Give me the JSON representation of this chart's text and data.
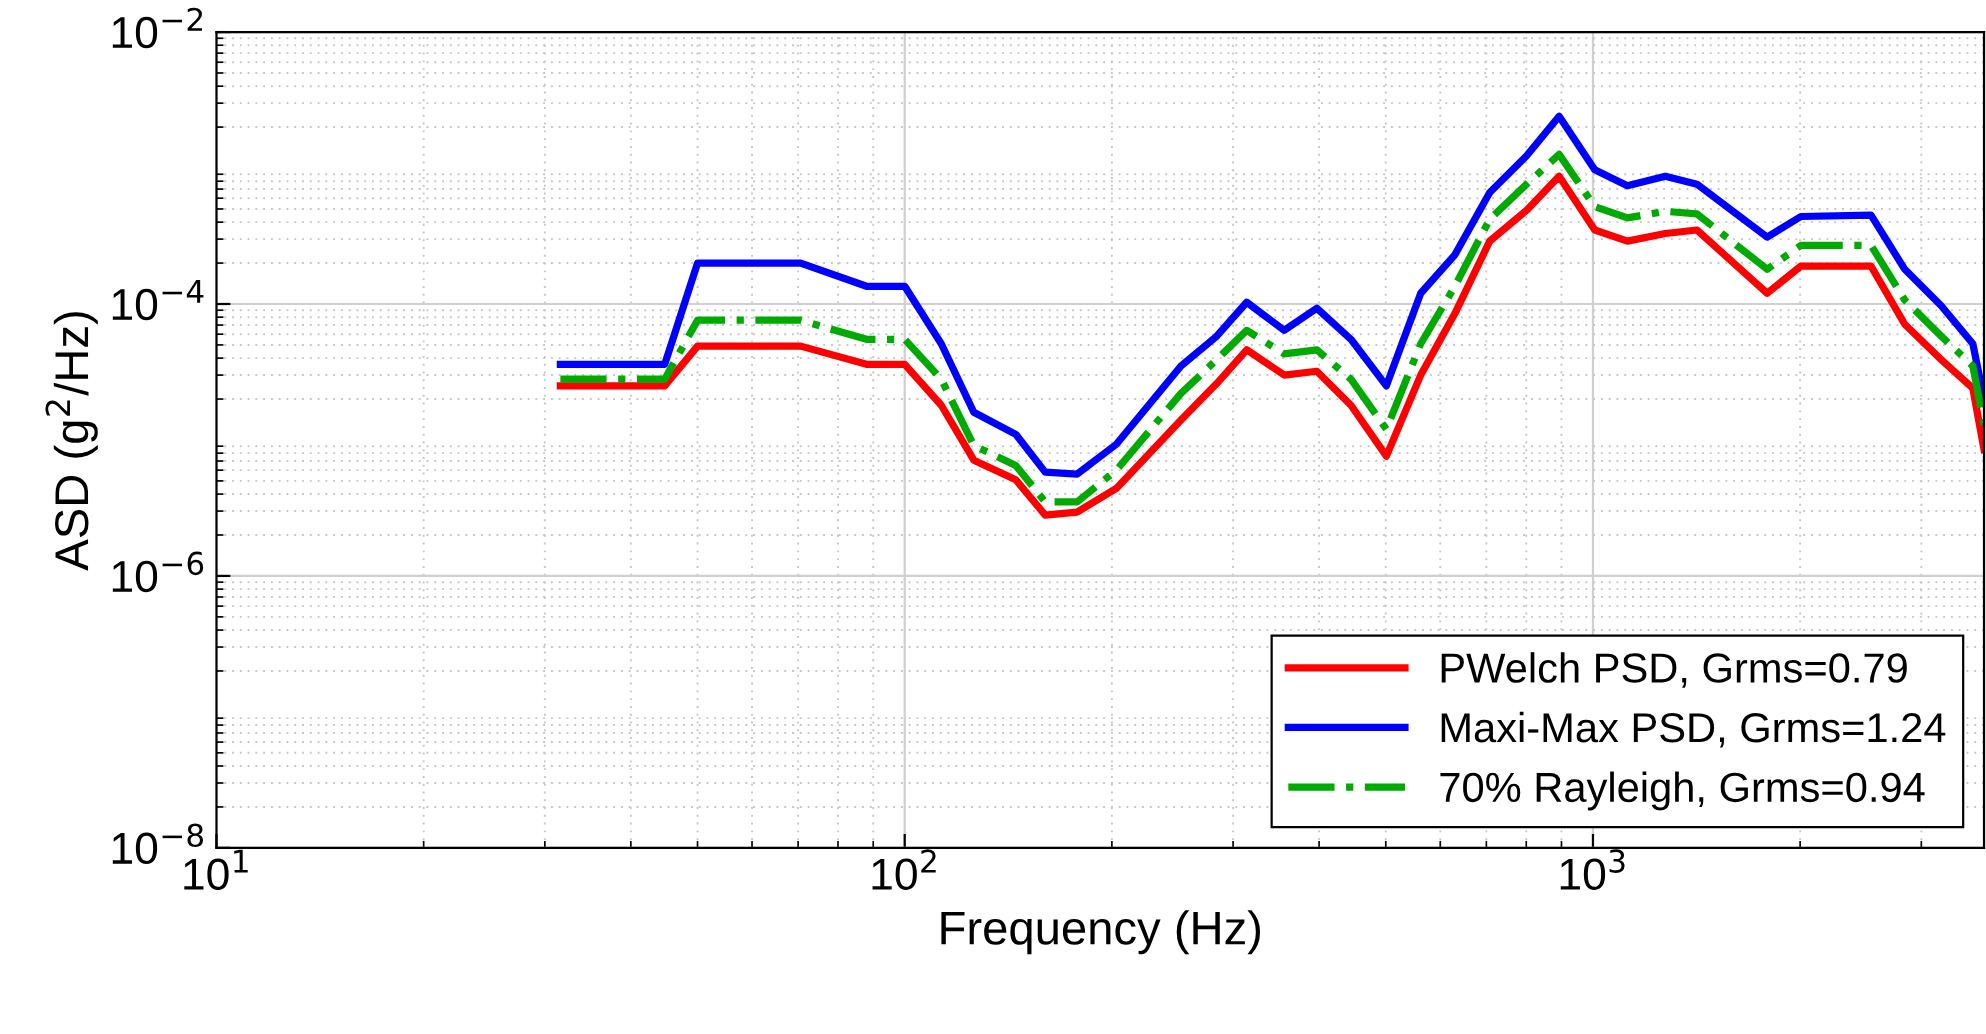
{
  "chart_data": {
    "type": "line",
    "xlabel": "Frequency (Hz)",
    "ylabel": "ASD (g$^{2}$/Hz)",
    "log": "xy",
    "grid": true,
    "legend": "bottom right",
    "marker": "none",
    "x": [
      31.6,
      44.8,
      50,
      70.6,
      88,
      100,
      113,
      126,
      145,
      160,
      178,
      203,
      252,
      284,
      314,
      356,
      397,
      445,
      501,
      562,
      630,
      708,
      801,
      893,
      1006,
      1122,
      1274,
      1416,
      1791,
      2005,
      2535,
      2838,
      3206,
      3564,
      3700
    ],
    "xlim": [
      10,
      3700
    ],
    "ylim": [
      1e-08,
      0.01
    ],
    "xticks": [
      {
        "value": 10,
        "label": "10$^{1}$"
      },
      {
        "value": 100,
        "label": "10$^{2}$"
      },
      {
        "value": 1000,
        "label": "10$^{3}$"
      }
    ],
    "yticks": [
      {
        "value": 1e-08,
        "label": "10$^{−8}$"
      },
      {
        "value": 1e-06,
        "label": "10$^{−6}$"
      },
      {
        "value": 0.0001,
        "label": "10$^{−4}$"
      },
      {
        "value": 0.01,
        "label": "10$^{−2}$"
      }
    ],
    "series": [
      {
        "name": "PWelch PSD, Grms=0.79",
        "color": "#ff0000",
        "line_style": "solid",
        "values": [
          2.5e-05,
          2.5e-05,
          4.9e-05,
          4.9e-05,
          3.6e-05,
          3.6e-05,
          1.8e-05,
          7.1e-06,
          5.1e-06,
          2.8e-06,
          2.95e-06,
          4.4e-06,
          1.4e-05,
          2.6e-05,
          4.6e-05,
          3e-05,
          3.2e-05,
          1.8e-05,
          7.6e-06,
          3e-05,
          8.5e-05,
          0.00029,
          0.00049,
          0.00087,
          0.00035,
          0.00029,
          0.00033,
          0.00035,
          0.00012,
          0.00019,
          0.00019,
          7.1e-05,
          3.9e-05,
          2.4e-05,
          8.5e-06
        ]
      },
      {
        "name": "Maxi-Max PSD, Grms=1.24",
        "color": "#0000ff",
        "line_style": "solid",
        "values": [
          3.6e-05,
          3.6e-05,
          0.0002,
          0.0002,
          0.000135,
          0.000135,
          5.1e-05,
          1.6e-05,
          1.1e-05,
          5.8e-06,
          5.6e-06,
          9.3e-06,
          3.5e-05,
          5.8e-05,
          0.000103,
          6.4e-05,
          9.3e-05,
          5.5e-05,
          2.5e-05,
          0.00012,
          0.00023,
          0.00066,
          0.00123,
          0.0024,
          0.00097,
          0.00074,
          0.00087,
          0.00076,
          0.00031,
          0.00044,
          0.00045,
          0.00018,
          9.7e-05,
          5.1e-05,
          2e-05
        ]
      },
      {
        "name": "70% Rayleigh, Grms=0.94",
        "color": "#00aa00",
        "line_style": "dashdot",
        "values": [
          2.8e-05,
          2.8e-05,
          7.6e-05,
          7.6e-05,
          5.5e-05,
          5.5e-05,
          2.8e-05,
          9.1e-06,
          6.5e-06,
          3.5e-06,
          3.5e-06,
          6e-06,
          2.2e-05,
          3.9e-05,
          6.4e-05,
          4.3e-05,
          4.6e-05,
          2.8e-05,
          1.2e-05,
          5.1e-05,
          0.000135,
          0.00042,
          0.00076,
          0.00126,
          0.00052,
          0.00043,
          0.00048,
          0.00046,
          0.00018,
          0.00027,
          0.00027,
          0.000107,
          5.8e-05,
          3.5e-05,
          1.3e-05
        ]
      }
    ]
  }
}
